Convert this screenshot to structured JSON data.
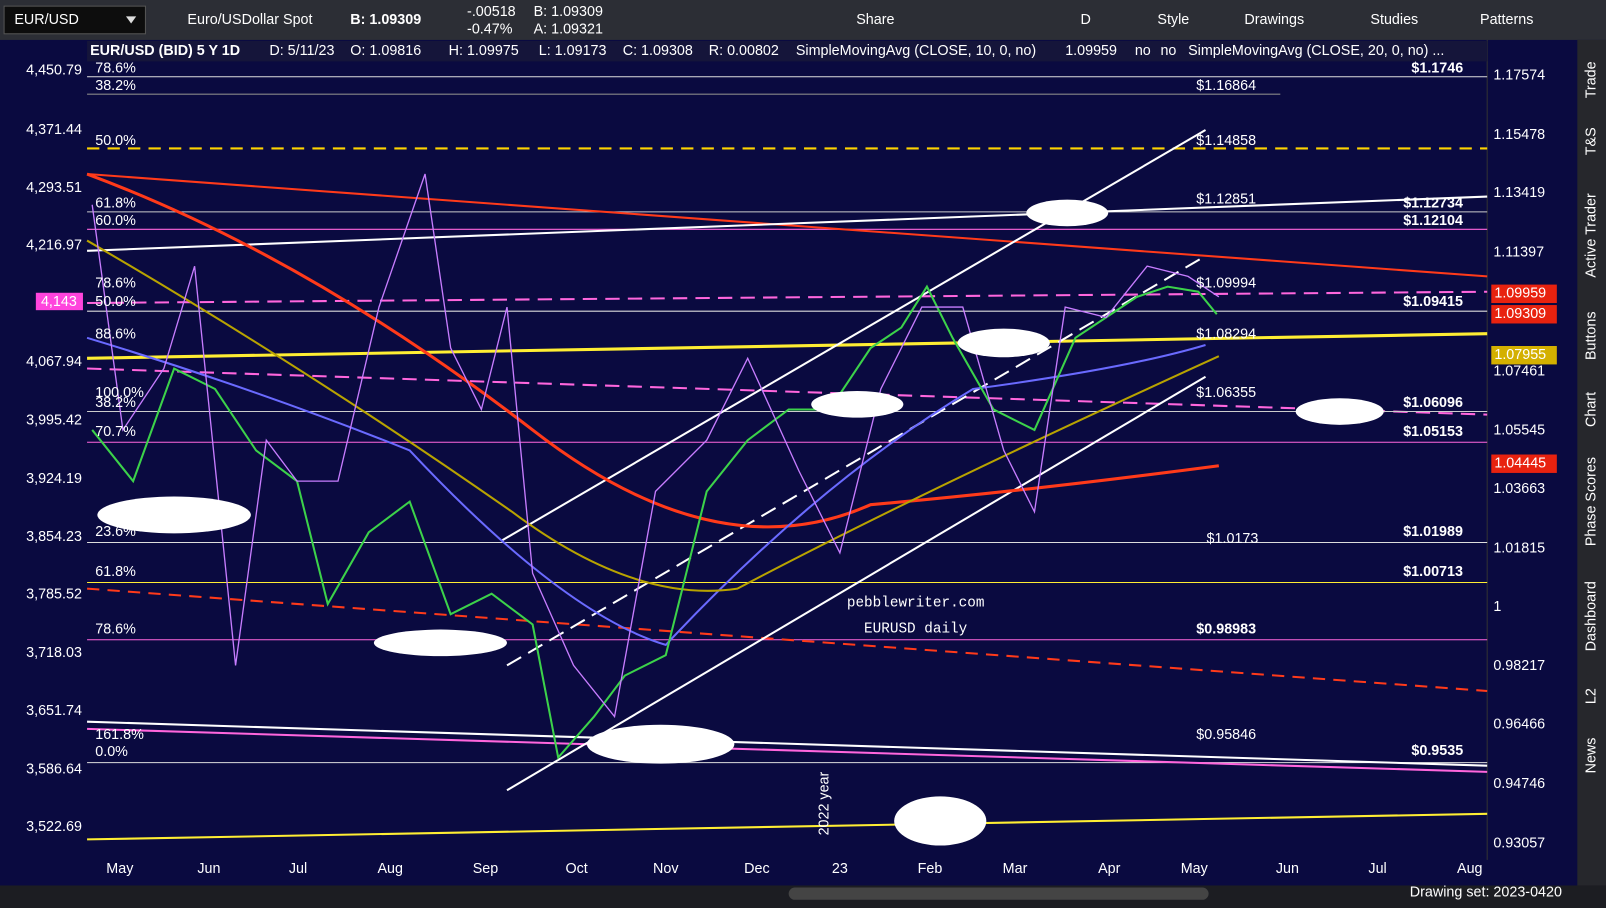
{
  "toolbar": {
    "symbol": "EUR/USD",
    "description": "Euro/USDollar Spot",
    "bid": "B: 1.09309",
    "change": "-.00518",
    "change_pct": "-0.47%",
    "bid_small": "B: 1.09309",
    "ask": "A: 1.09321",
    "buttons": [
      "Share",
      "D",
      "Style",
      "Drawings",
      "Studies",
      "Patterns"
    ]
  },
  "header": {
    "items": [
      "EUR/USD (BID) 5 Y 1D",
      "D: 5/11/23",
      "O: 1.09816",
      "H: 1.09975",
      "L: 1.09173",
      "C: 1.09308",
      "R: 0.00802",
      "SimpleMovingAvg (CLOSE, 10, 0, no)",
      "1.09959",
      "no",
      "no",
      "SimpleMovingAvg (CLOSE, 20, 0, no) ..."
    ]
  },
  "left_axis": [
    "4,450.79",
    "4,371.44",
    "4,293.51",
    "4,216.97",
    "4,143",
    "4,067.94",
    "3,995.42",
    "3,924.19",
    "3,854.23",
    "3,785.52",
    "3,718.03",
    "3,651.74",
    "3,586.64",
    "3,522.69"
  ],
  "right_axis": [
    "1.17574",
    "1.15478",
    "1.13419",
    "1.11397",
    "1.07461",
    "1.05545",
    "1.03663",
    "1.01815",
    "1",
    "0.98217",
    "0.96466",
    "0.94746",
    "0.93057"
  ],
  "price_tags": [
    "1.09959",
    "1.09309",
    "1.07955",
    "1.04445"
  ],
  "x_axis": [
    "May",
    "Jun",
    "Jul",
    "Aug",
    "Sep",
    "Oct",
    "Nov",
    "Dec",
    "23",
    "Feb",
    "Mar",
    "Apr",
    "May",
    "Jun",
    "Jul",
    "Aug"
  ],
  "fib_labels": [
    "78.6%",
    "38.2%",
    "50.0%",
    "61.8%",
    "60.0%",
    "78.6%",
    "50.0%",
    "88.6%",
    "100.0%",
    "38.2%",
    "70.7%",
    "23.6%",
    "61.8%",
    "78.6%",
    "161.8%",
    "0.0%"
  ],
  "level_labels": [
    "$1.1746",
    "$1.16864",
    "$1.14858",
    "$1.12851",
    "$1.12734",
    "$1.12104",
    "$1.09994",
    "$1.09415",
    "$1.08294",
    "$1.06355",
    "$1.06096",
    "$1.05153",
    "$1.0173",
    "$1.01989",
    "$1.00713",
    "$0.98983",
    "$0.95846",
    "$0.9535"
  ],
  "watermark": [
    "pebblewriter.com",
    "EURUSD daily"
  ],
  "year_marker": "2022 year",
  "sidebar": [
    "Trade",
    "T&S",
    "Active Trader",
    "Buttons",
    "Chart",
    "Phase Scores",
    "Dashboard",
    "L2",
    "News"
  ],
  "footer": {
    "drawing_set": "Drawing set: 2023-0420"
  }
}
